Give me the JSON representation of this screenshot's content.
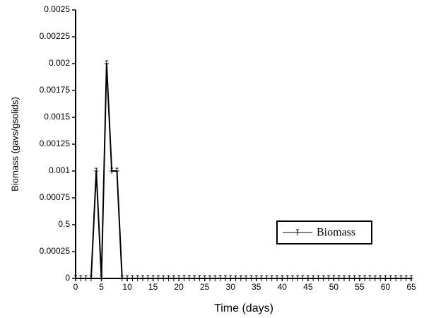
{
  "chart_data": {
    "type": "line",
    "xlabel": "Time (days)",
    "ylabel": "Biomass  (gavs/gsolids)",
    "x": [
      0,
      1,
      2,
      3,
      4,
      5,
      6,
      7,
      8,
      9,
      10,
      11,
      12,
      13,
      14,
      15,
      16,
      17,
      18,
      19,
      20,
      21,
      22,
      23,
      24,
      25,
      26,
      27,
      28,
      29,
      30,
      31,
      32,
      33,
      34,
      35,
      36,
      37,
      38,
      39,
      40,
      41,
      42,
      43,
      44,
      45,
      46,
      47,
      48,
      49,
      50,
      51,
      52,
      53,
      54,
      55,
      56,
      57,
      58,
      59,
      60,
      61,
      62,
      63,
      64,
      65
    ],
    "series": [
      {
        "name": "Biomass",
        "color": "#000000",
        "values": [
          0,
          0,
          0,
          0,
          0.001,
          0,
          0.002,
          0.001,
          0.001,
          0,
          0,
          0,
          0,
          0,
          0,
          0,
          0,
          0,
          0,
          0,
          0,
          0,
          0,
          0,
          0,
          0,
          0,
          0,
          0,
          0,
          0,
          0,
          0,
          0,
          0,
          0,
          0,
          0,
          0,
          0,
          0,
          0,
          0,
          0,
          0,
          0,
          0,
          0,
          0,
          0,
          0,
          0,
          0,
          0,
          0,
          0,
          0,
          0,
          0,
          0,
          0,
          0,
          0,
          0,
          0,
          0
        ]
      }
    ],
    "xlim": [
      0,
      65
    ],
    "xticks": [
      0,
      5,
      10,
      15,
      20,
      25,
      30,
      35,
      40,
      45,
      50,
      55,
      60,
      65
    ],
    "ylim": [
      0,
      0.0025
    ],
    "yticks": [
      0,
      0.00025,
      {
        "value": 0.0005,
        "label": "0.5"
      },
      0.00075,
      0.001,
      0.00125,
      0.0015,
      0.00175,
      0.002,
      0.00225,
      0.0025
    ],
    "legend": "right",
    "grid": false
  }
}
